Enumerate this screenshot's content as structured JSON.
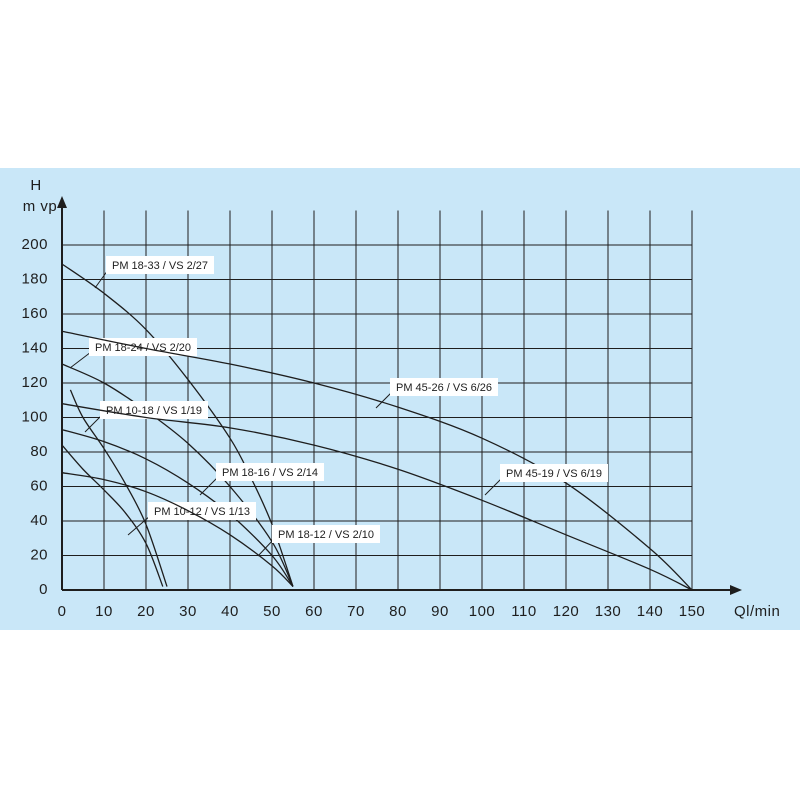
{
  "chart_data": {
    "type": "line",
    "y_label": "H",
    "y_unit": "m vp",
    "x_label": "Ql/min",
    "xlim": [
      0,
      150
    ],
    "xticks": [
      0,
      10,
      20,
      30,
      40,
      50,
      60,
      70,
      80,
      90,
      100,
      110,
      120,
      130,
      140,
      150
    ],
    "ylim": [
      0,
      220
    ],
    "yticks": [
      0,
      20,
      40,
      60,
      80,
      100,
      120,
      140,
      160,
      180,
      200
    ],
    "grid": true,
    "color": "#1e1e1e",
    "series": [
      {
        "name": "PM 18-33 / VS 2/27",
        "x": [
          0,
          10,
          20,
          30,
          40,
          45,
          50,
          55
        ],
        "values": [
          189,
          172,
          151,
          122,
          88,
          65,
          38,
          2
        ]
      },
      {
        "name": "PM 18-24 / VS 2/20",
        "x": [
          0,
          10,
          20,
          30,
          40,
          50,
          55
        ],
        "values": [
          131,
          120,
          104,
          85,
          60,
          28,
          2
        ]
      },
      {
        "name": "PM 10-18 / VS 1/19",
        "x": [
          2,
          5,
          10,
          15,
          20,
          25
        ],
        "values": [
          116,
          100,
          82,
          62,
          38,
          2
        ]
      },
      {
        "name": "PM 18-16 / VS 2/14",
        "x": [
          0,
          10,
          20,
          30,
          40,
          50,
          55
        ],
        "values": [
          93,
          86,
          76,
          62,
          44,
          20,
          2
        ]
      },
      {
        "name": "PM 10-12 / VS 1/13",
        "x": [
          0,
          5,
          10,
          15,
          20,
          24
        ],
        "values": [
          84,
          70,
          58,
          45,
          27,
          2
        ]
      },
      {
        "name": "PM 18-12 / VS 2/10",
        "x": [
          0,
          10,
          20,
          30,
          40,
          50,
          55
        ],
        "values": [
          68,
          64,
          57,
          46,
          32,
          14,
          2
        ]
      },
      {
        "name": "PM 45-26 / VS 6/26",
        "x": [
          0,
          20,
          40,
          60,
          80,
          100,
          120,
          140,
          150
        ],
        "values": [
          150,
          140,
          131,
          120,
          106,
          88,
          62,
          24,
          0
        ]
      },
      {
        "name": "PM 45-19 / VS 6/19",
        "x": [
          0,
          20,
          40,
          60,
          80,
          100,
          120,
          140,
          150
        ],
        "values": [
          108,
          100,
          94,
          84,
          70,
          52,
          32,
          12,
          0
        ]
      }
    ]
  }
}
